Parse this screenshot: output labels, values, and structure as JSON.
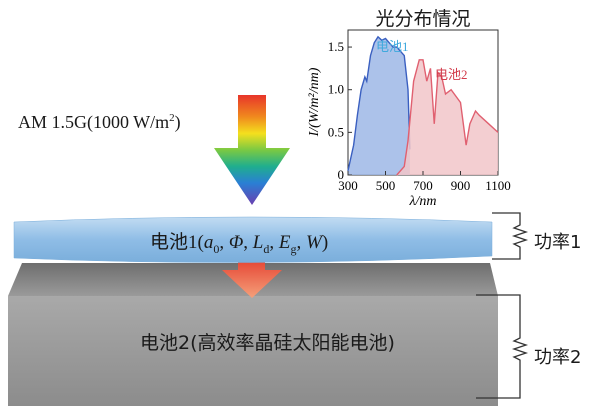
{
  "spectrum": {
    "title": "光分布情况",
    "ylabel": "I/(W/m²/nm)",
    "xlabel": "λ/nm",
    "x_ticks": [
      "300",
      "500",
      "700",
      "900",
      "1100"
    ],
    "y_ticks": [
      "0",
      "0.5",
      "1.0",
      "1.5"
    ],
    "series1_label": "电池1",
    "series2_label": "电池2",
    "series1_color": "#3a5fc0",
    "series2_color": "#e06070"
  },
  "illumination": {
    "label_main": "AM 1.5G(1000 W/m",
    "label_sup": "2",
    "label_end": ")"
  },
  "cell1": {
    "label_prefix": "电池1(",
    "a": "a",
    "a_sub": "0",
    "phi": "Φ",
    "L": "L",
    "L_sub": "d",
    "E": "E",
    "E_sub": "g",
    "W": "W",
    "sep": ", ",
    "label_suffix": ")",
    "color": "#9ec6ea"
  },
  "cell2": {
    "label": "电池2(高效率晶硅太阳能电池)",
    "color": "#8f8f8f"
  },
  "power1": {
    "label": "功率1"
  },
  "power2": {
    "label": "功率2"
  },
  "chart_data": {
    "type": "area",
    "title": "光分布情况",
    "xlabel": "λ/nm",
    "ylabel": "I/(W/m²/nm)",
    "xlim": [
      300,
      1100
    ],
    "ylim": [
      0,
      1.7
    ],
    "series": [
      {
        "name": "电池1",
        "x": [
          300,
          330,
          350,
          370,
          390,
          400,
          420,
          440,
          460,
          480,
          500,
          520,
          540,
          560,
          580,
          600,
          620,
          630
        ],
        "values": [
          0.05,
          0.35,
          0.7,
          1.0,
          1.15,
          1.1,
          1.4,
          1.55,
          1.62,
          1.58,
          1.6,
          1.55,
          1.5,
          1.5,
          1.45,
          1.4,
          1.0,
          0.3
        ]
      },
      {
        "name": "电池2",
        "x": [
          560,
          600,
          620,
          650,
          680,
          700,
          720,
          740,
          760,
          780,
          800,
          820,
          850,
          900,
          930,
          950,
          980,
          1000,
          1050,
          1100
        ],
        "values": [
          0.0,
          0.1,
          0.4,
          1.1,
          1.35,
          1.35,
          1.1,
          1.25,
          0.6,
          1.2,
          1.15,
          0.95,
          1.0,
          0.85,
          0.35,
          0.6,
          0.75,
          0.7,
          0.6,
          0.5
        ]
      }
    ]
  }
}
